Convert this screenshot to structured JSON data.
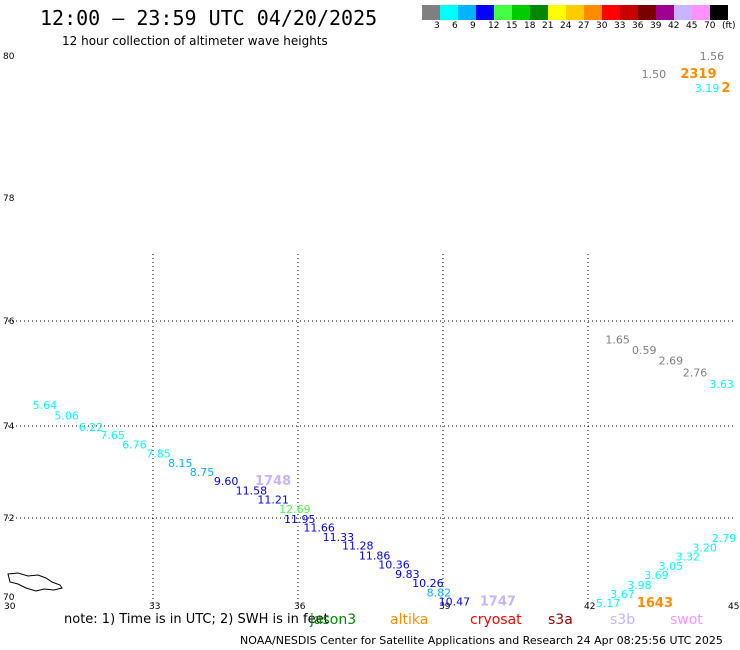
{
  "header": {
    "title": "12:00 – 23:59 UTC 04/20/2025",
    "subtitle": "12 hour collection of altimeter wave heights"
  },
  "legend": {
    "colors": [
      "#7f7f7f",
      "#00ffff",
      "#00b4ff",
      "#0000ff",
      "#44ff44",
      "#00cc00",
      "#008800",
      "#ffff00",
      "#ffcc00",
      "#ff8c00",
      "#ff0000",
      "#c80000",
      "#7a0000",
      "#a00090",
      "#c8b4ff",
      "#ff90ff",
      "#000000"
    ],
    "labels": [
      "3",
      "6",
      "9",
      "12",
      "15",
      "18",
      "21",
      "24",
      "27",
      "30",
      "33",
      "36",
      "39",
      "42",
      "45",
      "70",
      "(ft)"
    ]
  },
  "axes": {
    "x_ticks": [
      "30",
      "33",
      "36",
      "39",
      "42",
      "45"
    ],
    "y_ticks": [
      "70",
      "72",
      "74",
      "76",
      "78",
      "80"
    ],
    "x_range": [
      30,
      45
    ],
    "y_range": [
      70,
      80
    ]
  },
  "tracks": [
    {
      "name": "upper-right-track",
      "points": [
        {
          "label": "1.56",
          "color": "#7f7f7f",
          "lon": 44.6,
          "lat": 80.0
        },
        {
          "label": "1.50",
          "color": "#7f7f7f",
          "lon": 43.4,
          "lat": 79.75
        },
        {
          "label": "2319",
          "color": "#ff8c00",
          "lon": 44.2,
          "lat": 79.75,
          "pass": true
        },
        {
          "label": "3.19",
          "color": "#00ffff",
          "lon": 44.5,
          "lat": 79.55
        },
        {
          "label": "2",
          "color": "#ff8c00",
          "lon": 45.05,
          "lat": 79.55,
          "pass": true
        }
      ]
    },
    {
      "name": "right-descending-track",
      "points": [
        {
          "label": "1.65",
          "color": "#7f7f7f",
          "lon": 42.65,
          "lat": 75.65
        },
        {
          "label": "0.59",
          "color": "#7f7f7f",
          "lon": 43.2,
          "lat": 75.45
        },
        {
          "label": "2.69",
          "color": "#7f7f7f",
          "lon": 43.75,
          "lat": 75.25
        },
        {
          "label": "2.76",
          "color": "#7f7f7f",
          "lon": 44.25,
          "lat": 75.02
        },
        {
          "label": "3.63",
          "color": "#00ffff",
          "lon": 44.8,
          "lat": 74.8
        }
      ]
    },
    {
      "name": "main-diagonal-track",
      "points": [
        {
          "label": "5.64",
          "color": "#00ffff",
          "lon": 30.8,
          "lat": 74.4
        },
        {
          "label": "5.06",
          "color": "#00ffff",
          "lon": 31.25,
          "lat": 74.2
        },
        {
          "label": "6.22",
          "color": "#00ffff",
          "lon": 31.75,
          "lat": 73.98
        },
        {
          "label": "7.65",
          "color": "#00ffff",
          "lon": 32.2,
          "lat": 73.8
        },
        {
          "label": "6.76",
          "color": "#00ffff",
          "lon": 32.65,
          "lat": 73.6
        },
        {
          "label": "7.85",
          "color": "#00ffff",
          "lon": 33.15,
          "lat": 73.4
        },
        {
          "label": "8.15",
          "color": "#00b4ff",
          "lon": 33.6,
          "lat": 73.2
        },
        {
          "label": "8.75",
          "color": "#00b4ff",
          "lon": 34.05,
          "lat": 73.0
        },
        {
          "label": "9.60",
          "color": "#0000ff",
          "lon": 34.55,
          "lat": 72.8
        },
        {
          "label": "1748",
          "color": "#c8b4ff",
          "lon": 35.4,
          "lat": 72.8,
          "pass": true
        },
        {
          "label": "11.58",
          "color": "#0000ff",
          "lon": 35.0,
          "lat": 72.6
        },
        {
          "label": "11.21",
          "color": "#0000ff",
          "lon": 35.45,
          "lat": 72.4
        },
        {
          "label": "12.69",
          "color": "#44ff44",
          "lon": 35.9,
          "lat": 72.2
        },
        {
          "label": "11.95",
          "color": "#0000ff",
          "lon": 36.0,
          "lat": 71.98
        },
        {
          "label": "11.66",
          "color": "#0000ff",
          "lon": 36.4,
          "lat": 71.78
        },
        {
          "label": "11.33",
          "color": "#0000ff",
          "lon": 36.8,
          "lat": 71.57
        },
        {
          "label": "11.28",
          "color": "#0000ff",
          "lon": 37.2,
          "lat": 71.37
        },
        {
          "label": "11.86",
          "color": "#0000ff",
          "lon": 37.55,
          "lat": 71.15
        },
        {
          "label": "10.36",
          "color": "#0000ff",
          "lon": 37.95,
          "lat": 70.94
        },
        {
          "label": "9.83",
          "color": "#0000ff",
          "lon": 38.3,
          "lat": 70.73
        },
        {
          "label": "10.26",
          "color": "#0000ff",
          "lon": 38.65,
          "lat": 70.52
        },
        {
          "label": "8.82",
          "color": "#00b4ff",
          "lon": 38.95,
          "lat": 70.31
        },
        {
          "label": "10.47",
          "color": "#0000ff",
          "lon": 39.2,
          "lat": 70.1
        },
        {
          "label": "1747",
          "color": "#c8b4ff",
          "lon": 40.05,
          "lat": 70.1,
          "pass": true
        }
      ]
    },
    {
      "name": "right-ascending-track",
      "points": [
        {
          "label": "5.17",
          "color": "#00ffff",
          "lon": 42.45,
          "lat": 70.07
        },
        {
          "label": "3.67",
          "color": "#00ffff",
          "lon": 42.75,
          "lat": 70.27
        },
        {
          "label": "1643",
          "color": "#ff8c00",
          "lon": 43.3,
          "lat": 70.07,
          "pass": true
        },
        {
          "label": "3.98",
          "color": "#00ffff",
          "lon": 43.1,
          "lat": 70.48
        },
        {
          "label": "3.69",
          "color": "#00ffff",
          "lon": 43.45,
          "lat": 70.7
        },
        {
          "label": "3.05",
          "color": "#00ffff",
          "lon": 43.75,
          "lat": 70.91
        },
        {
          "label": "3.32",
          "color": "#00ffff",
          "lon": 44.1,
          "lat": 71.12
        },
        {
          "label": "3.20",
          "color": "#00ffff",
          "lon": 44.45,
          "lat": 71.33
        },
        {
          "label": "2.79",
          "color": "#00ffff",
          "lon": 44.85,
          "lat": 71.54
        }
      ]
    }
  ],
  "note": "note: 1) Time is in UTC; 2) SWH is in feet",
  "satellites": [
    {
      "name": "jason3",
      "color": "#008800"
    },
    {
      "name": "altika",
      "color": "#ff8c00"
    },
    {
      "name": "cryosat",
      "color": "#ff0000"
    },
    {
      "name": "s3a",
      "color": "#a00000"
    },
    {
      "name": "s3b",
      "color": "#c8b4ff"
    },
    {
      "name": "swot",
      "color": "#ff90ff"
    }
  ],
  "footer": "NOAA/NESDIS Center for Satellite Applications and Research   24 Apr 08:25:56 UTC 2025"
}
